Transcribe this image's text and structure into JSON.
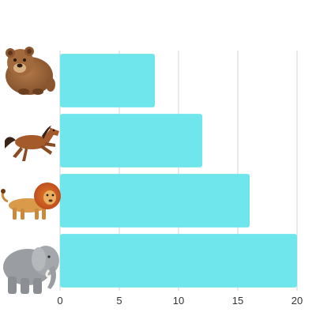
{
  "chart_data": {
    "type": "bar",
    "orientation": "horizontal",
    "categories": [
      "bear",
      "horse",
      "lion",
      "elephant"
    ],
    "category_icons": [
      "bear-icon",
      "horse-icon",
      "lion-icon",
      "elephant-icon"
    ],
    "values": [
      8,
      12,
      16,
      20
    ],
    "xlim": [
      0,
      20
    ],
    "xticks": [
      "0",
      "5",
      "10",
      "15",
      "20"
    ],
    "grid": "vertical",
    "legend": "none",
    "colors": {
      "bar": "#6ee6ec",
      "grid": "#d4d4d4",
      "tick_text": "#333333"
    }
  }
}
